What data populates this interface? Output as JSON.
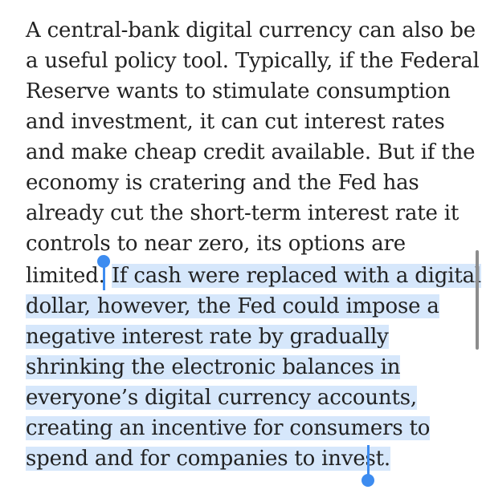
{
  "article": {
    "lines": [
      "A central-bank digital currency can also be",
      "a useful policy tool. Typically, if the Federal",
      "Reserve wants to stimulate consumption",
      "and investment, it can cut interest rates",
      "and make cheap credit available. But if the",
      "economy is cratering and the Fed has",
      "already cut the short-term interest rate it",
      "controls to near zero, its options are"
    ],
    "line9_unselected": "limited. ",
    "selected_lines": [
      "If cash were replaced with a digital",
      "dollar, however, the Fed could impose a",
      "negative interest rate by gradually",
      "shrinking the electronic balances in",
      "everyone’s digital currency accounts,",
      "creating an incentive for consumers to",
      "spend and for companies to invest."
    ]
  },
  "selection": {
    "highlight_color": "#d6e7fb",
    "handle_color": "#3d8cf0"
  }
}
